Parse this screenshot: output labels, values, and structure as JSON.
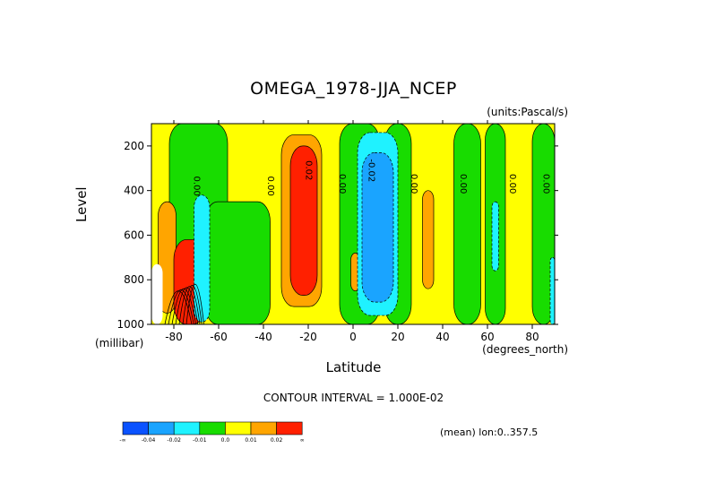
{
  "chart_data": {
    "type": "heatmap",
    "title": "OMEGA_1978-JJA_NCEP",
    "units": "(units:Pascal/s)",
    "ylabel": "Level",
    "y_units": "(millibar)",
    "xlabel": "Latitude",
    "x_units": "(degrees_north)",
    "contour_interval": "CONTOUR INTERVAL = 1.000E-02",
    "mean_lon": "(mean) lon:0..357.5",
    "xlim": [
      -90,
      90
    ],
    "ylim": [
      1000,
      100
    ],
    "x_ticks": [
      "-80",
      "-60",
      "-40",
      "-20",
      "0",
      "20",
      "40",
      "60",
      "80"
    ],
    "y_ticks": [
      "200",
      "400",
      "600",
      "800",
      "1000"
    ],
    "contour_labels": [
      {
        "text": "0.00",
        "lat": -71,
        "level": 380
      },
      {
        "text": "0.00",
        "lat": -38,
        "level": 380
      },
      {
        "text": "0.02",
        "lat": -21,
        "level": 310
      },
      {
        "text": "0.00",
        "lat": -6,
        "level": 370
      },
      {
        "text": "-0.02",
        "lat": 7,
        "level": 310
      },
      {
        "text": "0.00",
        "lat": 26,
        "level": 370
      },
      {
        "text": "0.00",
        "lat": 48,
        "level": 370
      },
      {
        "text": "0.00",
        "lat": 70,
        "level": 370
      },
      {
        "text": "0.00",
        "lat": 85,
        "level": 370
      }
    ],
    "colorbar": {
      "colors": [
        "#0a52ff",
        "#1aa4ff",
        "#1ff2ff",
        "#18dc00",
        "#ffff00",
        "#ffa500",
        "#ff2000"
      ],
      "labels": [
        "-∞",
        "-0.04",
        "-0.02",
        "-0.01",
        "0.0",
        "0.01",
        "0.02",
        "∞"
      ]
    },
    "regions": [
      {
        "color": "#ffff00",
        "lat_range": [
          -90,
          90
        ],
        "level_range": [
          100,
          1000
        ],
        "note": "background 0.0 to 0.01"
      },
      {
        "color": "#18dc00",
        "lat_range": [
          -82,
          -56
        ],
        "level_range": [
          100,
          700
        ]
      },
      {
        "color": "#18dc00",
        "lat_range": [
          -66,
          -37
        ],
        "level_range": [
          450,
          1000
        ]
      },
      {
        "color": "#18dc00",
        "lat_range": [
          -6,
          12
        ],
        "level_range": [
          100,
          1000
        ]
      },
      {
        "color": "#18dc00",
        "lat_range": [
          14,
          26
        ],
        "level_range": [
          100,
          1000
        ]
      },
      {
        "color": "#18dc00",
        "lat_range": [
          45,
          57
        ],
        "level_range": [
          100,
          1000
        ]
      },
      {
        "color": "#18dc00",
        "lat_range": [
          59,
          68
        ],
        "level_range": [
          100,
          1000
        ]
      },
      {
        "color": "#18dc00",
        "lat_range": [
          80,
          90
        ],
        "level_range": [
          100,
          1000
        ]
      },
      {
        "color": "#ffa500",
        "lat_range": [
          -87,
          -79
        ],
        "level_range": [
          450,
          950
        ]
      },
      {
        "color": "#ffa500",
        "lat_range": [
          -32,
          -14
        ],
        "level_range": [
          150,
          920
        ]
      },
      {
        "color": "#ffa500",
        "lat_range": [
          31,
          36
        ],
        "level_range": [
          400,
          840
        ]
      },
      {
        "color": "#ffa500",
        "lat_range": [
          -1,
          3
        ],
        "level_range": [
          680,
          850
        ]
      },
      {
        "color": "#ff2000",
        "lat_range": [
          -28,
          -16
        ],
        "level_range": [
          200,
          870
        ]
      },
      {
        "color": "#ff2000",
        "lat_range": [
          -80,
          -66
        ],
        "level_range": [
          620,
          1000
        ]
      },
      {
        "color": "#1ff2ff",
        "lat_range": [
          -71,
          -64
        ],
        "level_range": [
          420,
          990
        ]
      },
      {
        "color": "#1ff2ff",
        "lat_range": [
          2,
          20
        ],
        "level_range": [
          140,
          960
        ]
      },
      {
        "color": "#1aa4ff",
        "lat_range": [
          4,
          18
        ],
        "level_range": [
          230,
          900
        ]
      },
      {
        "color": "#1ff2ff",
        "lat_range": [
          62,
          65
        ],
        "level_range": [
          450,
          760
        ]
      },
      {
        "color": "#1ff2ff",
        "lat_range": [
          88,
          90
        ],
        "level_range": [
          700,
          1000
        ]
      },
      {
        "color": "#ffffff",
        "lat_range": [
          -90,
          -85
        ],
        "level_range": [
          730,
          1000
        ],
        "note": "below ground"
      }
    ]
  }
}
